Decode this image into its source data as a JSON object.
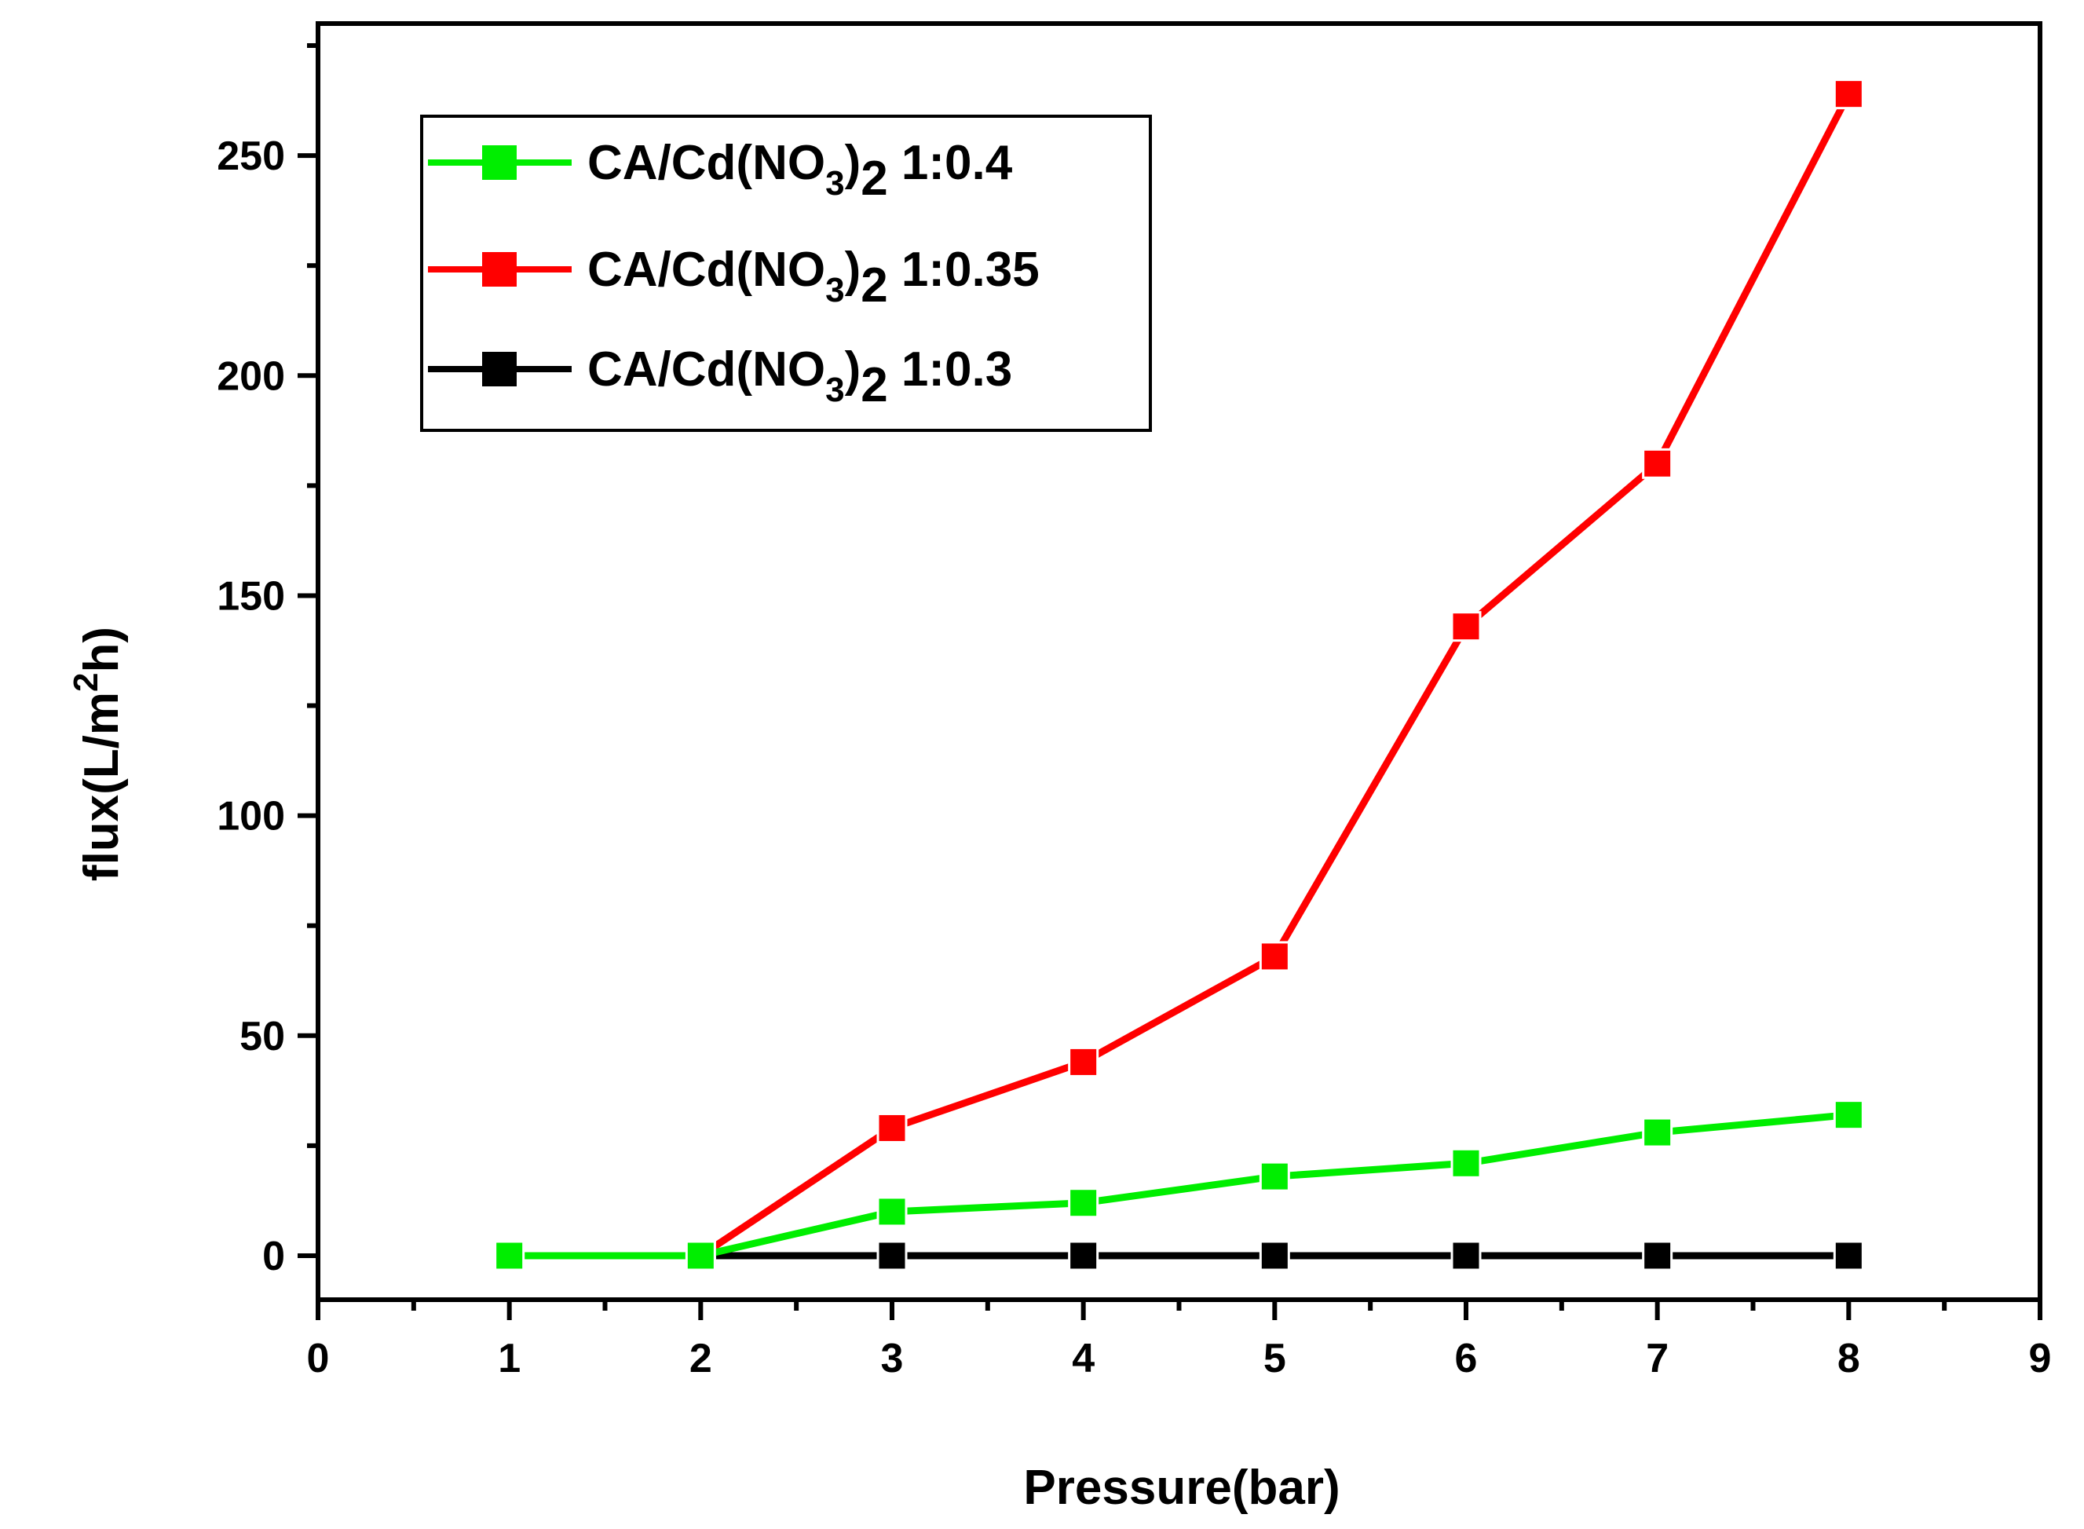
{
  "chart_data": {
    "type": "line",
    "title": "",
    "xlabel": "Pressure(bar)",
    "ylabel_parts": {
      "base": "flux(L/m",
      "sup": "2",
      "end": "h)"
    },
    "xlim": [
      0,
      9
    ],
    "ylim": [
      -10,
      280
    ],
    "xticks": [
      0,
      1,
      2,
      3,
      4,
      5,
      6,
      7,
      8,
      9
    ],
    "yticks": [
      0,
      50,
      100,
      150,
      200,
      250
    ],
    "grid": false,
    "legend_position": "top-left",
    "series": [
      {
        "name": "CA/Cd(NO3)2 1:0.4",
        "label_parts": {
          "a": "CA/Cd(NO",
          "sub1": "3",
          "b": ")",
          "sub2": "2",
          "c": " 1:0.4"
        },
        "color": "#00ee00",
        "x": [
          1,
          2,
          3,
          4,
          5,
          6,
          7,
          8
        ],
        "y": [
          0,
          0,
          10,
          12,
          18,
          21,
          28,
          32
        ]
      },
      {
        "name": "CA/Cd(NO3)2 1:0.35",
        "label_parts": {
          "a": "CA/Cd(NO",
          "sub1": "3",
          "b": ")",
          "sub2": "2",
          "c": " 1:0.35"
        },
        "color": "#ff0000",
        "x": [
          2,
          3,
          4,
          5,
          6,
          7,
          8
        ],
        "y": [
          0,
          29,
          44,
          68,
          143,
          180,
          264
        ]
      },
      {
        "name": "CA/Cd(NO3)2 1:0.3",
        "label_parts": {
          "a": "CA/Cd(NO",
          "sub1": "3",
          "b": ")",
          "sub2": "2",
          "c": " 1:0.3"
        },
        "color": "#000000",
        "x": [
          2,
          3,
          4,
          5,
          6,
          7,
          8
        ],
        "y": [
          0,
          0,
          0,
          0,
          0,
          0,
          0
        ]
      }
    ],
    "series_draw_order": [
      2,
      1,
      0
    ]
  }
}
